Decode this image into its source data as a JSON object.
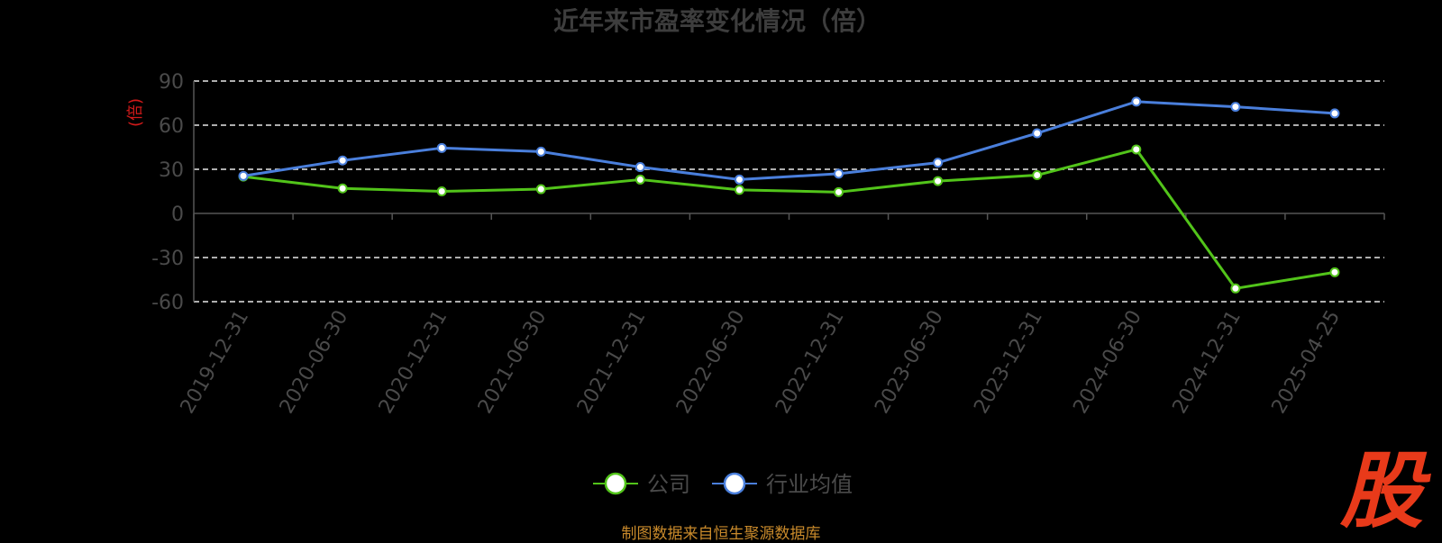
{
  "chart_data": {
    "type": "line",
    "title": "近年来市盈率变化情况（倍）",
    "ylabel": "(倍)",
    "ylim": [
      -60,
      90
    ],
    "yticks": [
      90,
      60,
      30,
      0,
      -30,
      -60
    ],
    "grid": true,
    "legend_position": "bottom",
    "categories": [
      "2019-12-31",
      "2020-06-30",
      "2020-12-31",
      "2021-06-30",
      "2021-12-31",
      "2022-06-30",
      "2022-12-31",
      "2023-06-30",
      "2023-12-31",
      "2024-06-30",
      "2024-12-31",
      "2025-04-25"
    ],
    "series": [
      {
        "name": "公司",
        "color": "#52c41a",
        "values": [
          25,
          17,
          15,
          16.5,
          23,
          16,
          14.5,
          22,
          26,
          43.5,
          -51,
          -40
        ]
      },
      {
        "name": "行业均值",
        "color": "#4a7fdc",
        "values": [
          25.5,
          36,
          44.5,
          42,
          31.5,
          23,
          27,
          34.5,
          54.5,
          76,
          72.5,
          68
        ]
      }
    ]
  },
  "footer": {
    "source": "制图数据来自恒生聚源数据库"
  },
  "logo": {
    "text": "股"
  }
}
